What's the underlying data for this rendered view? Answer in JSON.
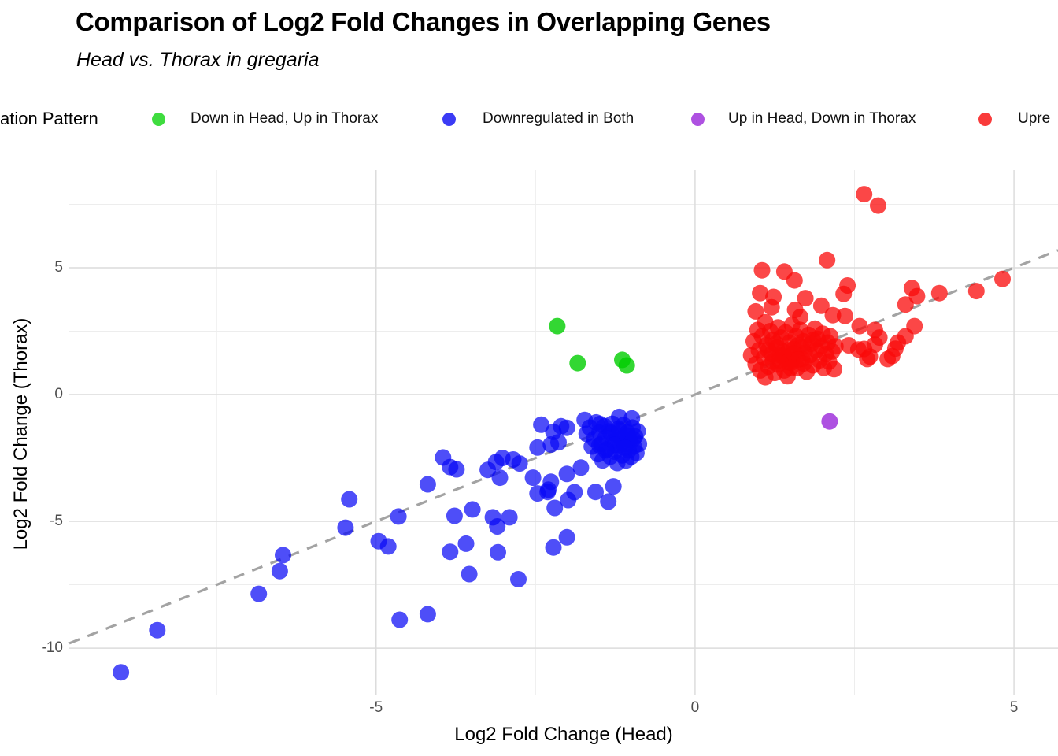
{
  "title": "Comparison of Log2 Fold Changes in Overlapping Genes",
  "subtitle": "Head vs. Thorax in gregaria",
  "legend": {
    "title": "ation Pattern",
    "items": [
      {
        "label": "Down in Head, Up in Thorax",
        "color": "#3fdc3f"
      },
      {
        "label": "Downregulated in Both",
        "color": "#3b3bf5"
      },
      {
        "label": "Up in Head, Down in Thorax",
        "color": "#ae51e1"
      },
      {
        "label": "Upre",
        "color": "#f93b3b"
      }
    ]
  },
  "chart_data": {
    "type": "scatter",
    "title": "Comparison of Log2 Fold Changes in Overlapping Genes",
    "subtitle": "Head vs. Thorax in gregaria",
    "xlabel": "Log2 Fold Change (Head)",
    "ylabel": "Log2 Fold Change (Thorax)",
    "xlim": [
      -9.81,
      5.69
    ],
    "ylim": [
      -11.83,
      8.85
    ],
    "x_major_ticks": [
      -5,
      0,
      5
    ],
    "x_tick_labels": [
      "-5",
      "0",
      "5"
    ],
    "y_major_ticks": [
      5,
      0,
      -5,
      -10
    ],
    "y_tick_labels": [
      "5",
      "0",
      "-5",
      "-10"
    ],
    "x_minor_gridlines": [
      -7.5,
      -2.5,
      2.5
    ],
    "y_minor_gridlines": [
      7.5,
      2.5,
      -2.5,
      -7.5
    ],
    "grid": true,
    "legend_position": "top",
    "reference_line": {
      "slope": 1,
      "intercept": 0,
      "style": "dashed",
      "color": "#a3a3a3"
    },
    "series": [
      {
        "name": "Down in Head, Up in Thorax",
        "color": "rgba(0,205,0,0.8)",
        "points": [
          [
            -2.16,
            2.7
          ],
          [
            -1.84,
            1.24
          ],
          [
            -1.14,
            1.37
          ],
          [
            -1.07,
            1.15
          ]
        ]
      },
      {
        "name": "Downregulated in Both",
        "color": "rgba(10,10,245,0.72)",
        "points": [
          [
            -9.0,
            -10.95
          ],
          [
            -8.43,
            -9.29
          ],
          [
            -6.84,
            -7.86
          ],
          [
            -6.51,
            -6.96
          ],
          [
            -6.46,
            -6.33
          ],
          [
            -5.48,
            -5.25
          ],
          [
            -5.42,
            -4.13
          ],
          [
            -4.96,
            -5.78
          ],
          [
            -4.81,
            -5.99
          ],
          [
            -4.65,
            -4.81
          ],
          [
            -4.63,
            -8.88
          ],
          [
            -4.19,
            -8.66
          ],
          [
            -4.19,
            -3.54
          ],
          [
            -3.95,
            -2.48
          ],
          [
            -3.84,
            -6.2
          ],
          [
            -3.84,
            -2.86
          ],
          [
            -3.77,
            -4.78
          ],
          [
            -3.74,
            -2.95
          ],
          [
            -3.59,
            -5.88
          ],
          [
            -3.54,
            -7.08
          ],
          [
            -3.49,
            -4.53
          ],
          [
            -3.25,
            -2.97
          ],
          [
            -3.17,
            -4.84
          ],
          [
            -3.12,
            -2.66
          ],
          [
            -3.1,
            -5.2
          ],
          [
            -3.09,
            -6.22
          ],
          [
            -3.06,
            -3.28
          ],
          [
            -3.02,
            -2.5
          ],
          [
            -2.91,
            -4.84
          ],
          [
            -2.85,
            -2.56
          ],
          [
            -2.77,
            -7.28
          ],
          [
            -2.75,
            -2.72
          ],
          [
            -2.54,
            -3.28
          ],
          [
            -2.47,
            -3.9
          ],
          [
            -2.47,
            -2.09
          ],
          [
            -2.41,
            -1.19
          ],
          [
            -2.31,
            -3.84
          ],
          [
            -2.3,
            -3.75
          ],
          [
            -2.26,
            -3.44
          ],
          [
            -2.26,
            -1.97
          ],
          [
            -2.22,
            -6.03
          ],
          [
            -2.2,
            -4.47
          ],
          [
            -2.14,
            -1.88
          ],
          [
            -2.1,
            -1.25
          ],
          [
            -2.01,
            -5.63
          ],
          [
            -2.01,
            -3.13
          ],
          [
            -2.01,
            -1.31
          ],
          [
            -1.99,
            -4.16
          ],
          [
            -1.89,
            -3.85
          ],
          [
            -1.79,
            -2.88
          ],
          [
            -1.73,
            -1.0
          ],
          [
            -1.56,
            -3.84
          ],
          [
            -1.49,
            -1.16
          ],
          [
            -1.36,
            -4.22
          ],
          [
            -1.28,
            -3.62
          ],
          [
            -1.19,
            -0.88
          ],
          [
            -0.99,
            -0.94
          ],
          [
            -2.22,
            -1.47
          ],
          [
            -1.7,
            -1.55
          ],
          [
            -1.65,
            -1.3
          ],
          [
            -1.62,
            -2.05
          ],
          [
            -1.58,
            -1.75
          ],
          [
            -1.55,
            -1.1
          ],
          [
            -1.52,
            -2.35
          ],
          [
            -1.5,
            -1.5
          ],
          [
            -1.47,
            -1.95
          ],
          [
            -1.45,
            -2.6
          ],
          [
            -1.42,
            -1.25
          ],
          [
            -1.4,
            -1.7
          ],
          [
            -1.38,
            -2.15
          ],
          [
            -1.35,
            -1.45
          ],
          [
            -1.33,
            -2.45
          ],
          [
            -1.3,
            -1.15
          ],
          [
            -1.28,
            -1.85
          ],
          [
            -1.26,
            -2.25
          ],
          [
            -1.24,
            -1.6
          ],
          [
            -1.22,
            -2.7
          ],
          [
            -1.2,
            -1.35
          ],
          [
            -1.18,
            -2.0
          ],
          [
            -1.16,
            -1.75
          ],
          [
            -1.14,
            -2.4
          ],
          [
            -1.12,
            -1.2
          ],
          [
            -1.1,
            -1.95
          ],
          [
            -1.08,
            -2.6
          ],
          [
            -1.06,
            -1.5
          ],
          [
            -1.04,
            -2.2
          ],
          [
            -1.02,
            -1.8
          ],
          [
            -1.0,
            -2.45
          ],
          [
            -0.98,
            -1.3
          ],
          [
            -0.96,
            -2.05
          ],
          [
            -0.94,
            -1.65
          ],
          [
            -0.92,
            -2.3
          ],
          [
            -0.9,
            -1.45
          ],
          [
            -0.88,
            -1.95
          ],
          [
            -1.32,
            -1.52
          ],
          [
            -1.18,
            -1.42
          ],
          [
            -1.05,
            -1.62
          ],
          [
            -1.26,
            -1.98
          ],
          [
            -1.4,
            -2.2
          ],
          [
            -0.97,
            -1.75
          ],
          [
            -1.5,
            -2.0
          ],
          [
            -1.1,
            -2.1
          ]
        ]
      },
      {
        "name": "Up in Head, Down in Thorax",
        "color": "rgba(160,50,220,0.85)",
        "points": [
          [
            2.11,
            -1.06
          ]
        ]
      },
      {
        "name": "Upre",
        "color": "rgba(250,10,10,0.75)",
        "points": [
          [
            2.65,
            7.9
          ],
          [
            2.87,
            7.45
          ],
          [
            2.07,
            5.3
          ],
          [
            1.56,
            4.5
          ],
          [
            1.05,
            4.9
          ],
          [
            1.4,
            4.85
          ],
          [
            1.02,
            4.0
          ],
          [
            1.23,
            3.85
          ],
          [
            1.73,
            3.8
          ],
          [
            4.82,
            4.56
          ],
          [
            4.41,
            4.08
          ],
          [
            3.83,
            4.0
          ],
          [
            3.4,
            4.2
          ],
          [
            3.48,
            3.88
          ],
          [
            3.3,
            3.55
          ],
          [
            3.44,
            2.7
          ],
          [
            3.3,
            2.3
          ],
          [
            3.14,
            1.81
          ],
          [
            3.02,
            1.4
          ],
          [
            2.89,
            2.25
          ],
          [
            2.74,
            1.5
          ],
          [
            2.56,
            1.78
          ],
          [
            2.41,
            1.94
          ],
          [
            2.39,
            4.3
          ],
          [
            2.33,
            3.97
          ],
          [
            2.16,
            3.13
          ],
          [
            1.98,
            3.5
          ],
          [
            1.57,
            3.34
          ],
          [
            1.65,
            3.06
          ],
          [
            1.2,
            3.44
          ],
          [
            0.95,
            3.28
          ],
          [
            2.35,
            3.1
          ],
          [
            2.58,
            2.7
          ],
          [
            2.82,
            2.55
          ],
          [
            3.18,
            2.05
          ],
          [
            2.82,
            1.97
          ],
          [
            2.65,
            1.8
          ],
          [
            2.7,
            1.4
          ],
          [
            3.09,
            1.52
          ],
          [
            1.1,
            0.68
          ],
          [
            1.45,
            0.72
          ],
          [
            0.88,
            1.55
          ],
          [
            0.92,
            2.1
          ],
          [
            0.95,
            1.2
          ],
          [
            0.98,
            2.55
          ],
          [
            1.0,
            1.75
          ],
          [
            1.02,
            0.95
          ],
          [
            1.05,
            2.3
          ],
          [
            1.08,
            1.45
          ],
          [
            1.1,
            2.85
          ],
          [
            1.12,
            1.95
          ],
          [
            1.15,
            1.1
          ],
          [
            1.18,
            2.5
          ],
          [
            1.2,
            1.6
          ],
          [
            1.22,
            2.15
          ],
          [
            1.25,
            0.85
          ],
          [
            1.28,
            1.85
          ],
          [
            1.3,
            2.65
          ],
          [
            1.32,
            1.35
          ],
          [
            1.35,
            2.25
          ],
          [
            1.38,
            1.7
          ],
          [
            1.4,
            0.95
          ],
          [
            1.42,
            2.45
          ],
          [
            1.45,
            1.5
          ],
          [
            1.48,
            2.05
          ],
          [
            1.5,
            1.25
          ],
          [
            1.52,
            2.75
          ],
          [
            1.55,
            1.8
          ],
          [
            1.58,
            2.3
          ],
          [
            1.6,
            1.05
          ],
          [
            1.62,
            1.95
          ],
          [
            1.65,
            2.55
          ],
          [
            1.68,
            1.4
          ],
          [
            1.7,
            2.1
          ],
          [
            1.72,
            1.65
          ],
          [
            1.75,
            0.9
          ],
          [
            1.78,
            2.35
          ],
          [
            1.8,
            1.55
          ],
          [
            1.82,
            2.0
          ],
          [
            1.85,
            1.15
          ],
          [
            1.88,
            2.6
          ],
          [
            1.9,
            1.75
          ],
          [
            1.92,
            2.2
          ],
          [
            1.95,
            1.35
          ],
          [
            1.98,
            1.9
          ],
          [
            2.0,
            2.4
          ],
          [
            2.02,
            1.05
          ],
          [
            2.05,
            1.6
          ],
          [
            2.08,
            2.05
          ],
          [
            2.1,
            1.3
          ],
          [
            2.12,
            2.3
          ],
          [
            2.15,
            1.7
          ],
          [
            2.18,
            1.0
          ],
          [
            2.2,
            1.9
          ],
          [
            1.15,
            1.75
          ],
          [
            1.33,
            1.55
          ],
          [
            1.52,
            1.35
          ],
          [
            1.27,
            2.0
          ],
          [
            1.47,
            1.75
          ],
          [
            1.67,
            1.85
          ],
          [
            1.85,
            2.15
          ],
          [
            1.22,
            1.3
          ],
          [
            1.3,
            1.18
          ],
          [
            1.38,
            1.52
          ],
          [
            1.45,
            1.28
          ],
          [
            1.55,
            1.62
          ],
          [
            1.62,
            1.38
          ],
          [
            1.7,
            1.22
          ],
          [
            1.5,
            1.05
          ]
        ]
      }
    ]
  }
}
